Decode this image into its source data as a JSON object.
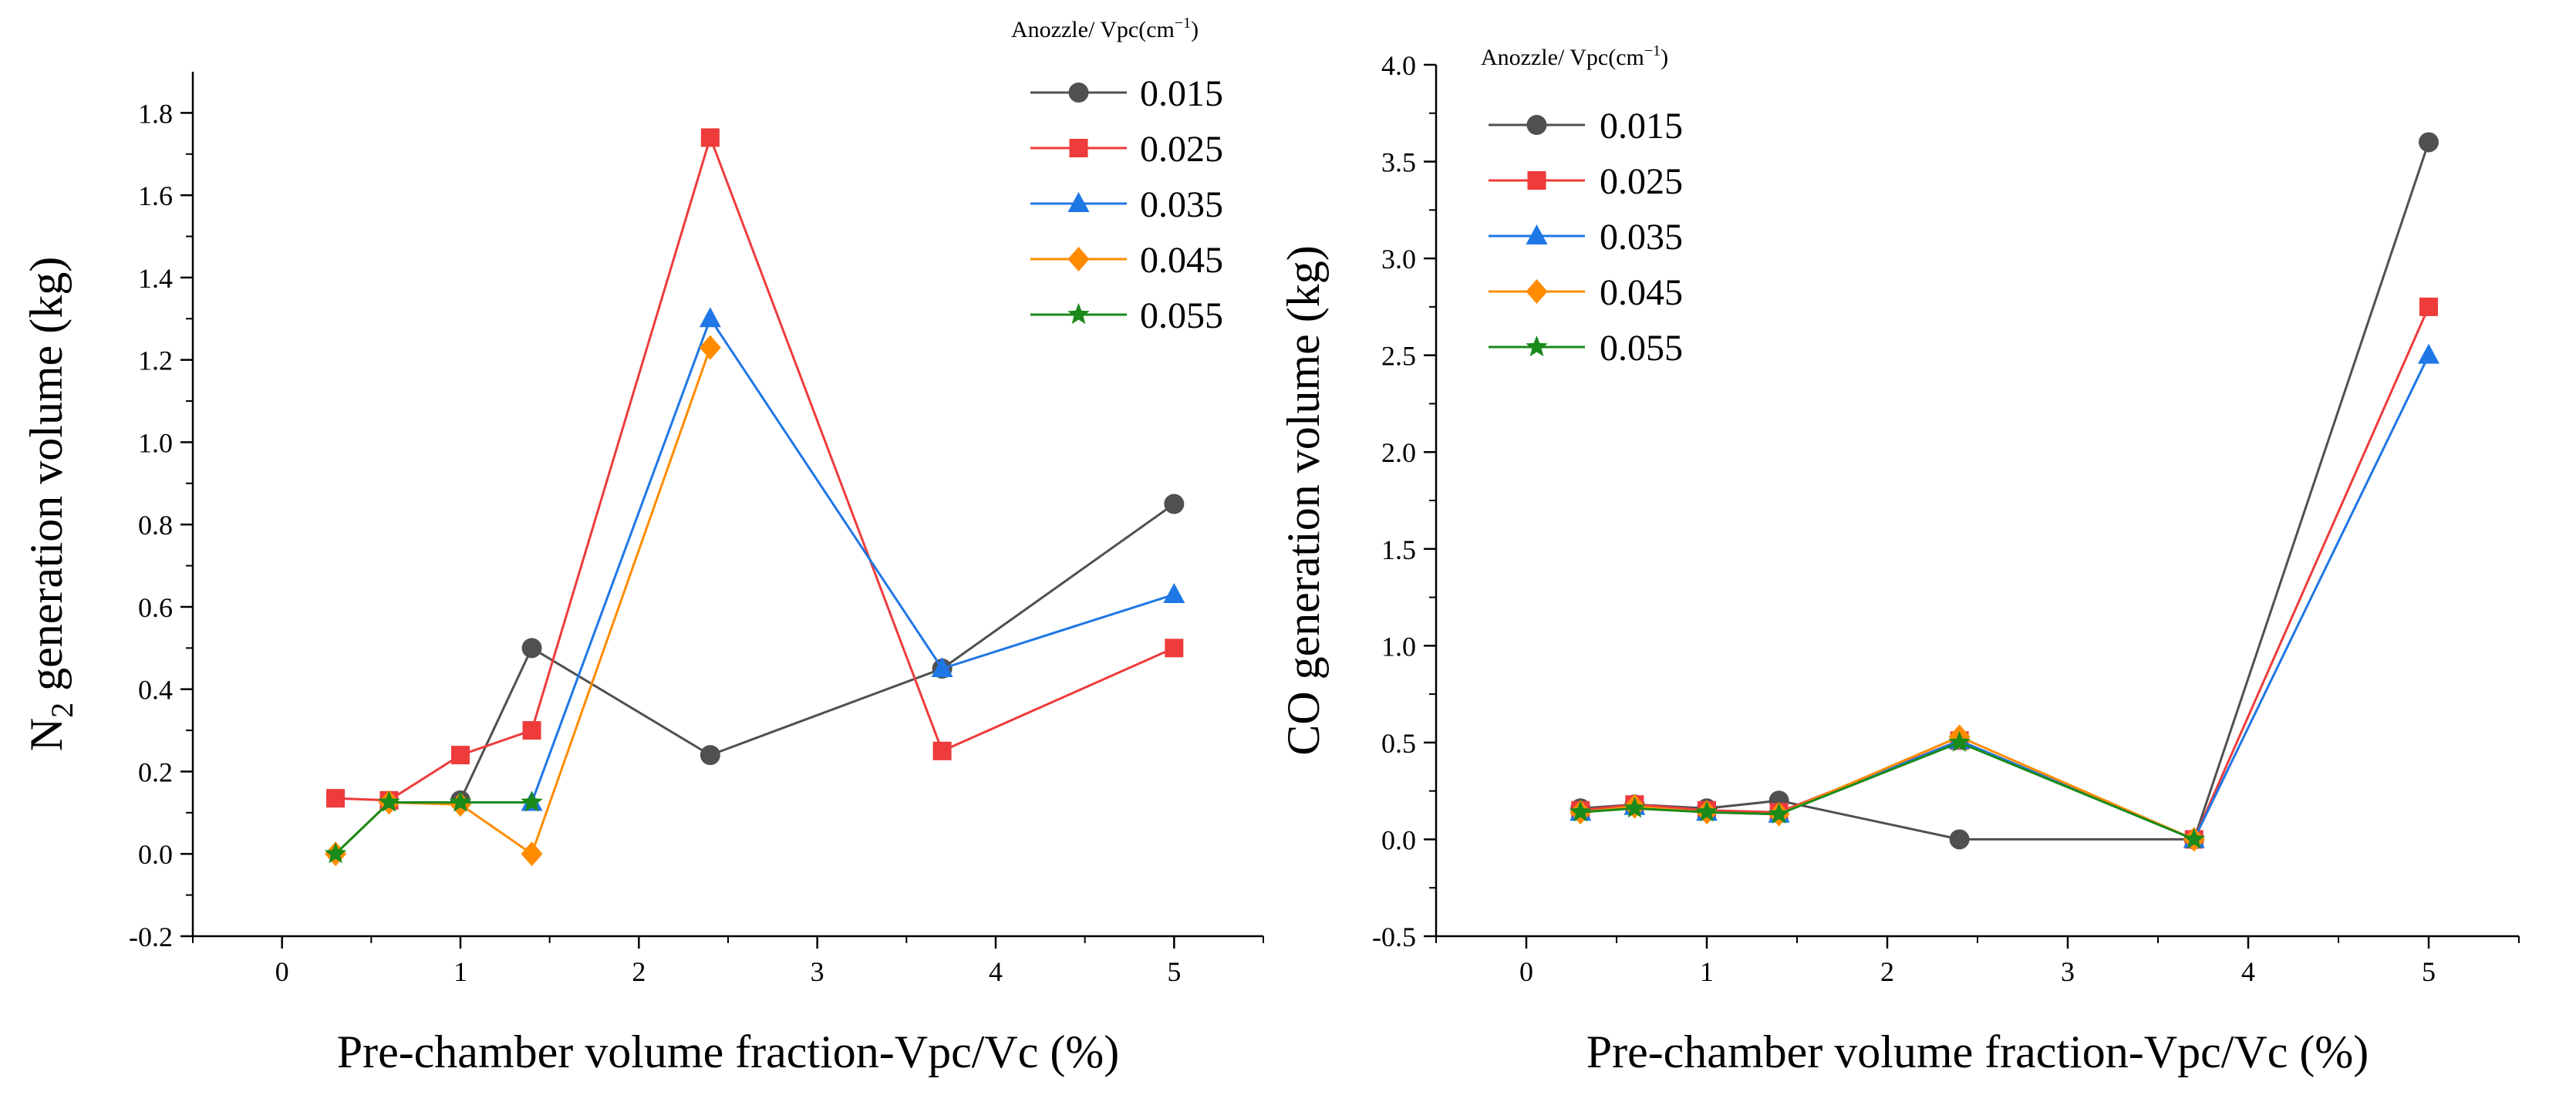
{
  "chart_data": [
    {
      "type": "line",
      "title": "",
      "xlabel": "Pre-chamber volume fraction-Vpc/Vc (%)",
      "ylabel_main": "N",
      "ylabel_sub": "2",
      "ylabel_rest": " generation volume (kg)",
      "xlim": [
        -0.5,
        5.5
      ],
      "ylim": [
        -0.2,
        1.9
      ],
      "xticks": [
        0,
        1,
        2,
        3,
        4,
        5
      ],
      "xtick_labels": [
        "0",
        "1",
        "2",
        "3",
        "4",
        "5"
      ],
      "yticks": [
        -0.2,
        0.0,
        0.2,
        0.4,
        0.6,
        0.8,
        1.0,
        1.2,
        1.4,
        1.6,
        1.8
      ],
      "ytick_labels": [
        "-0.2",
        "0.0",
        "0.2",
        "0.4",
        "0.6",
        "0.8",
        "1.0",
        "1.2",
        "1.4",
        "1.6",
        "1.8"
      ],
      "legend_title_main": "Anozzle/ Vpc(cm",
      "legend_title_sup": "−1",
      "legend_title_end": ")",
      "legend_position": "top-right",
      "series": [
        {
          "name": "0.015",
          "color": "#505050",
          "marker": "circle",
          "x": [
            1.0,
            1.4,
            2.4,
            3.7,
            5.0
          ],
          "y": [
            0.13,
            0.5,
            0.24,
            0.45,
            0.85
          ]
        },
        {
          "name": "0.025",
          "color": "#ee3b3b",
          "marker": "square",
          "x": [
            0.3,
            0.6,
            1.0,
            1.4,
            2.4,
            3.7,
            5.0
          ],
          "y": [
            0.135,
            0.13,
            0.24,
            0.3,
            1.74,
            0.25,
            0.5
          ]
        },
        {
          "name": "0.035",
          "color": "#1f77e5",
          "marker": "triangle",
          "x": [
            1.4,
            2.4,
            3.7,
            5.0
          ],
          "y": [
            0.125,
            1.3,
            0.45,
            0.63
          ]
        },
        {
          "name": "0.045",
          "color": "#ff8c00",
          "marker": "diamond",
          "x": [
            0.3,
            0.6,
            1.0,
            1.4,
            2.4
          ],
          "y": [
            0.0,
            0.125,
            0.12,
            0.0,
            1.23
          ]
        },
        {
          "name": "0.055",
          "color": "#1a8a1a",
          "marker": "star",
          "x": [
            0.3,
            0.6,
            1.0,
            1.4
          ],
          "y": [
            0.0,
            0.125,
            0.125,
            0.125
          ]
        }
      ]
    },
    {
      "type": "line",
      "title": "",
      "xlabel": "Pre-chamber volume fraction-Vpc/Vc (%)",
      "ylabel_main": "CO generation volume (kg)",
      "ylabel_sub": "",
      "ylabel_rest": "",
      "xlim": [
        -0.5,
        5.5
      ],
      "ylim": [
        -0.5,
        4.0
      ],
      "xticks": [
        0,
        1,
        2,
        3,
        4,
        5
      ],
      "xtick_labels": [
        "0",
        "1",
        "2",
        "3",
        "4",
        "5"
      ],
      "yticks": [
        -0.5,
        0.0,
        0.5,
        1.0,
        1.5,
        2.0,
        2.5,
        3.0,
        3.5,
        4.0
      ],
      "ytick_labels": [
        "-0.5",
        "0.0",
        "0.5",
        "1.0",
        "1.5",
        "2.0",
        "2.5",
        "3.0",
        "3.5",
        "4.0"
      ],
      "legend_title_main": "Anozzle/ Vpc(cm",
      "legend_title_sup": "−1",
      "legend_title_end": ")",
      "legend_position": "top-left",
      "series": [
        {
          "name": "0.015",
          "color": "#505050",
          "marker": "circle",
          "x": [
            0.3,
            0.6,
            1.0,
            1.4,
            2.4,
            3.7,
            5.0
          ],
          "y": [
            0.16,
            0.18,
            0.16,
            0.2,
            0.0,
            0.0,
            3.6
          ]
        },
        {
          "name": "0.025",
          "color": "#ee3b3b",
          "marker": "square",
          "x": [
            0.3,
            0.6,
            1.0,
            1.4,
            2.4,
            3.7,
            5.0
          ],
          "y": [
            0.15,
            0.18,
            0.15,
            0.14,
            0.51,
            0.0,
            2.75
          ]
        },
        {
          "name": "0.035",
          "color": "#1f77e5",
          "marker": "triangle",
          "x": [
            0.3,
            0.6,
            1.0,
            1.4,
            2.4,
            3.7,
            5.0
          ],
          "y": [
            0.14,
            0.17,
            0.14,
            0.13,
            0.51,
            0.0,
            2.5
          ]
        },
        {
          "name": "0.045",
          "color": "#ff8c00",
          "marker": "diamond",
          "x": [
            0.3,
            0.6,
            1.0,
            1.4,
            2.4,
            3.7
          ],
          "y": [
            0.14,
            0.17,
            0.14,
            0.13,
            0.53,
            0.0
          ]
        },
        {
          "name": "0.055",
          "color": "#1a8a1a",
          "marker": "star",
          "x": [
            0.3,
            0.6,
            1.0,
            1.4,
            2.4,
            3.7
          ],
          "y": [
            0.14,
            0.16,
            0.14,
            0.13,
            0.5,
            0.0
          ]
        }
      ]
    }
  ]
}
